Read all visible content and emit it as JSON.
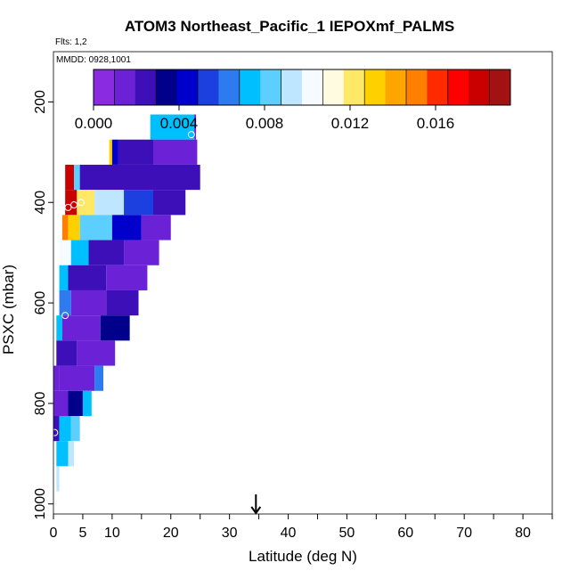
{
  "title": "ATOM3 Northeast_Pacific_1 IEPOXmf_PALMS",
  "flights_label": "Flts: 1,2",
  "dates_label": "MMDD: 0928,1001",
  "colors": {
    "scale": [
      "#8a2be2",
      "#6b22d6",
      "#3c0fb8",
      "#00008b",
      "#0000cd",
      "#1c3fe0",
      "#2e7bf0",
      "#00bfff",
      "#5ccfff",
      "#bfe6ff",
      "#f5fbff",
      "#fffbe0",
      "#ffe866",
      "#ffd000",
      "#ffa500",
      "#ff7f00",
      "#ff2a00",
      "#ff0000",
      "#c90000",
      "#a31212"
    ],
    "arrow": "#000000",
    "axis": "#000000"
  },
  "chart_data": {
    "type": "heatmap",
    "xlabel": "Latitude (deg N)",
    "ylabel": "PSXC (mbar)",
    "xlim": [
      0,
      85
    ],
    "ylim": [
      1020,
      100
    ],
    "y_reversed": true,
    "x_tick_labels": [
      "0",
      "5",
      "10",
      "20",
      "30",
      "40",
      "50",
      "60",
      "70",
      "80"
    ],
    "x_ticks": [
      0,
      5,
      10,
      20,
      30,
      40,
      50,
      60,
      70,
      80
    ],
    "x_minor_ticks": [
      15,
      25,
      35,
      45,
      55,
      65,
      75,
      85
    ],
    "y_ticks": [
      200,
      400,
      600,
      800,
      1000
    ],
    "y_tick_labels": [
      "200",
      "400",
      "600",
      "800",
      "1000"
    ],
    "colorbar": {
      "min": 0.0,
      "max": 0.0195,
      "tick_values": [
        0.0,
        0.004,
        0.008,
        0.012,
        0.016
      ],
      "tick_labels": [
        "0.000",
        "0.004",
        "0.008",
        "0.012",
        "0.016"
      ]
    },
    "arrow_latitude": 34.5,
    "rows": [
      {
        "p": 250,
        "segments": [
          [
            16.5,
            24.0,
            0.007
          ],
          [
            24.0,
            24.3,
            0.001
          ]
        ]
      },
      {
        "p": 300,
        "segments": [
          [
            9.5,
            10.0,
            0.013
          ],
          [
            10.0,
            11.0,
            0.004
          ],
          [
            11.0,
            17.0,
            0.0025
          ],
          [
            17.0,
            24.5,
            0.001
          ]
        ]
      },
      {
        "p": 350,
        "segments": [
          [
            2.0,
            3.5,
            0.018
          ],
          [
            3.5,
            4.5,
            0.008
          ],
          [
            4.5,
            25.0,
            0.002
          ]
        ]
      },
      {
        "p": 400,
        "segments": [
          [
            2.0,
            4.0,
            0.018
          ],
          [
            4.0,
            7.0,
            0.012
          ],
          [
            7.0,
            12.0,
            0.009
          ],
          [
            12.0,
            17.0,
            0.0055
          ],
          [
            17.0,
            22.5,
            0.002
          ]
        ]
      },
      {
        "p": 450,
        "segments": [
          [
            1.5,
            2.5,
            0.015
          ],
          [
            2.5,
            4.5,
            0.013
          ],
          [
            4.5,
            10.0,
            0.008
          ],
          [
            10.0,
            15.0,
            0.004
          ],
          [
            15.0,
            20.0,
            0.0015
          ]
        ]
      },
      {
        "p": 500,
        "segments": [
          [
            1.0,
            3.0,
            0.0105
          ],
          [
            3.0,
            6.0,
            0.007
          ],
          [
            6.0,
            12.0,
            0.002
          ],
          [
            12.0,
            18.0,
            0.001
          ]
        ]
      },
      {
        "p": 550,
        "segments": [
          [
            1.0,
            2.5,
            0.007
          ],
          [
            2.5,
            9.0,
            0.002
          ],
          [
            9.0,
            16.0,
            0.001
          ]
        ]
      },
      {
        "p": 600,
        "segments": [
          [
            1.0,
            3.0,
            0.006
          ],
          [
            3.0,
            9.0,
            0.001
          ],
          [
            9.0,
            14.5,
            0.002
          ]
        ]
      },
      {
        "p": 650,
        "segments": [
          [
            0.5,
            1.5,
            0.007
          ],
          [
            1.5,
            8.0,
            0.0015
          ],
          [
            8.0,
            13.0,
            0.003
          ]
        ]
      },
      {
        "p": 700,
        "segments": [
          [
            0.5,
            4.0,
            0.002
          ],
          [
            4.0,
            10.5,
            0.0015
          ]
        ]
      },
      {
        "p": 750,
        "segments": [
          [
            0.0,
            1.0,
            0.0015
          ],
          [
            1.0,
            7.0,
            0.001
          ],
          [
            7.0,
            8.5,
            0.006
          ]
        ]
      },
      {
        "p": 800,
        "segments": [
          [
            0.0,
            2.5,
            0.001
          ],
          [
            2.5,
            5.0,
            0.003
          ],
          [
            5.0,
            6.5,
            0.007
          ]
        ]
      },
      {
        "p": 850,
        "segments": [
          [
            0.0,
            1.0,
            0.002
          ],
          [
            1.0,
            3.0,
            0.007
          ],
          [
            3.0,
            4.5,
            0.0085
          ]
        ]
      },
      {
        "p": 900,
        "segments": [
          [
            0.5,
            2.5,
            0.0075
          ],
          [
            2.5,
            3.5,
            0.0095
          ]
        ]
      },
      {
        "p": 950,
        "segments": [
          [
            0.5,
            1.0,
            0.0095
          ]
        ]
      }
    ],
    "markers": [
      {
        "lat": 23.5,
        "p": 265
      },
      {
        "lat": 2.5,
        "p": 410
      },
      {
        "lat": 3.5,
        "p": 405
      },
      {
        "lat": 4.7,
        "p": 400
      },
      {
        "lat": 2.0,
        "p": 625
      },
      {
        "lat": 0.2,
        "p": 858
      }
    ]
  }
}
